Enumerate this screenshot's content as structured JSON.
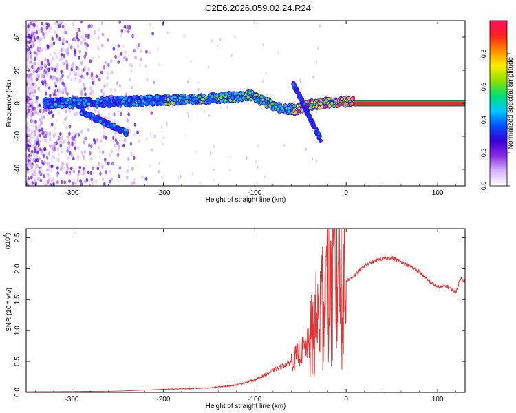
{
  "title": "C2E6.2026.059.02.24.R24",
  "chart_data": [
    {
      "type": "heatmap",
      "name": "spectrogram",
      "xlabel": "Height of straight line (km)",
      "ylabel": "Frequency (Hz)",
      "xlim": [
        -350,
        130
      ],
      "ylim": [
        -50,
        50
      ],
      "xticks": [
        -300,
        -200,
        -100,
        0,
        100
      ],
      "yticks": [
        -40,
        -20,
        0,
        20,
        40
      ],
      "colorbar": {
        "label": "Normalized spectral amplitude",
        "range": [
          0,
          1
        ],
        "ticks": [
          "0.0",
          "0.2",
          "0.4",
          "0.6",
          "0.8"
        ],
        "tick_values": [
          0.0,
          0.2,
          0.4,
          0.6,
          0.8
        ],
        "colors": [
          "#ffffff",
          "#d8b4ff",
          "#8a2be2",
          "#3a00d6",
          "#0050ff",
          "#00c8ff",
          "#00e070",
          "#8fe000",
          "#ffee00",
          "#ff8a00",
          "#ff2020",
          "#ff1060"
        ]
      },
      "main_trace": [
        {
          "x": -320,
          "f": 0.0
        },
        {
          "x": -280,
          "f": 0.5
        },
        {
          "x": -240,
          "f": 1.0
        },
        {
          "x": -200,
          "f": 2.0
        },
        {
          "x": -160,
          "f": 2.5
        },
        {
          "x": -120,
          "f": 4.0
        },
        {
          "x": -105,
          "f": 5.0
        },
        {
          "x": -90,
          "f": 1.0
        },
        {
          "x": -70,
          "f": -3.0
        },
        {
          "x": -55,
          "f": -4.0
        },
        {
          "x": -40,
          "f": -1.0
        },
        {
          "x": -20,
          "f": 0.5
        },
        {
          "x": 0,
          "f": 1.0
        },
        {
          "x": 10,
          "f": 0.5
        },
        {
          "x": 130,
          "f": 0.0
        }
      ],
      "side_branches": [
        {
          "from_x": -290,
          "from_f": -5,
          "to_x": -240,
          "to_f": -18
        },
        {
          "from_x": -58,
          "from_f": 12,
          "to_x": -28,
          "to_f": -22
        }
      ]
    },
    {
      "type": "line",
      "name": "snr",
      "xlabel": "Height of straight line (km)",
      "ylabel": "SNR (10 * v/v)",
      "yscale_label": "(x10",
      "yscale_exp": "4",
      "xlim": [
        -350,
        130
      ],
      "ylim": [
        0,
        2.65
      ],
      "xticks": [
        -300,
        -200,
        -100,
        0,
        100
      ],
      "yticks": [
        0.0,
        0.5,
        1.0,
        1.5,
        2.0,
        2.5
      ],
      "ytick_labels": [
        "0.0",
        "0.5",
        "1.0",
        "1.5",
        "2.0",
        "2.5"
      ],
      "color": "#e83030",
      "envelope": [
        {
          "x": -350,
          "y": 0.01
        },
        {
          "x": -250,
          "y": 0.02
        },
        {
          "x": -200,
          "y": 0.05
        },
        {
          "x": -150,
          "y": 0.07
        },
        {
          "x": -120,
          "y": 0.12
        },
        {
          "x": -100,
          "y": 0.2
        },
        {
          "x": -80,
          "y": 0.35
        },
        {
          "x": -60,
          "y": 0.5
        },
        {
          "x": -40,
          "y": 0.8
        },
        {
          "x": -30,
          "y": 1.2
        },
        {
          "x": -20,
          "y": 1.7
        },
        {
          "x": -10,
          "y": 1.85
        },
        {
          "x": 0,
          "y": 1.8
        },
        {
          "x": 10,
          "y": 1.9
        },
        {
          "x": 20,
          "y": 2.05
        },
        {
          "x": 35,
          "y": 2.15
        },
        {
          "x": 50,
          "y": 2.18
        },
        {
          "x": 65,
          "y": 2.08
        },
        {
          "x": 80,
          "y": 1.95
        },
        {
          "x": 90,
          "y": 1.8
        },
        {
          "x": 100,
          "y": 1.7
        },
        {
          "x": 110,
          "y": 1.72
        },
        {
          "x": 120,
          "y": 1.62
        },
        {
          "x": 125,
          "y": 1.85
        },
        {
          "x": 130,
          "y": 1.8
        }
      ],
      "peaks": [
        {
          "x": -26,
          "y": 2.35
        },
        {
          "x": -22,
          "y": 2.2
        },
        {
          "x": -17,
          "y": 2.45
        },
        {
          "x": -13,
          "y": 2.65
        },
        {
          "x": -8,
          "y": 2.1
        }
      ]
    }
  ]
}
